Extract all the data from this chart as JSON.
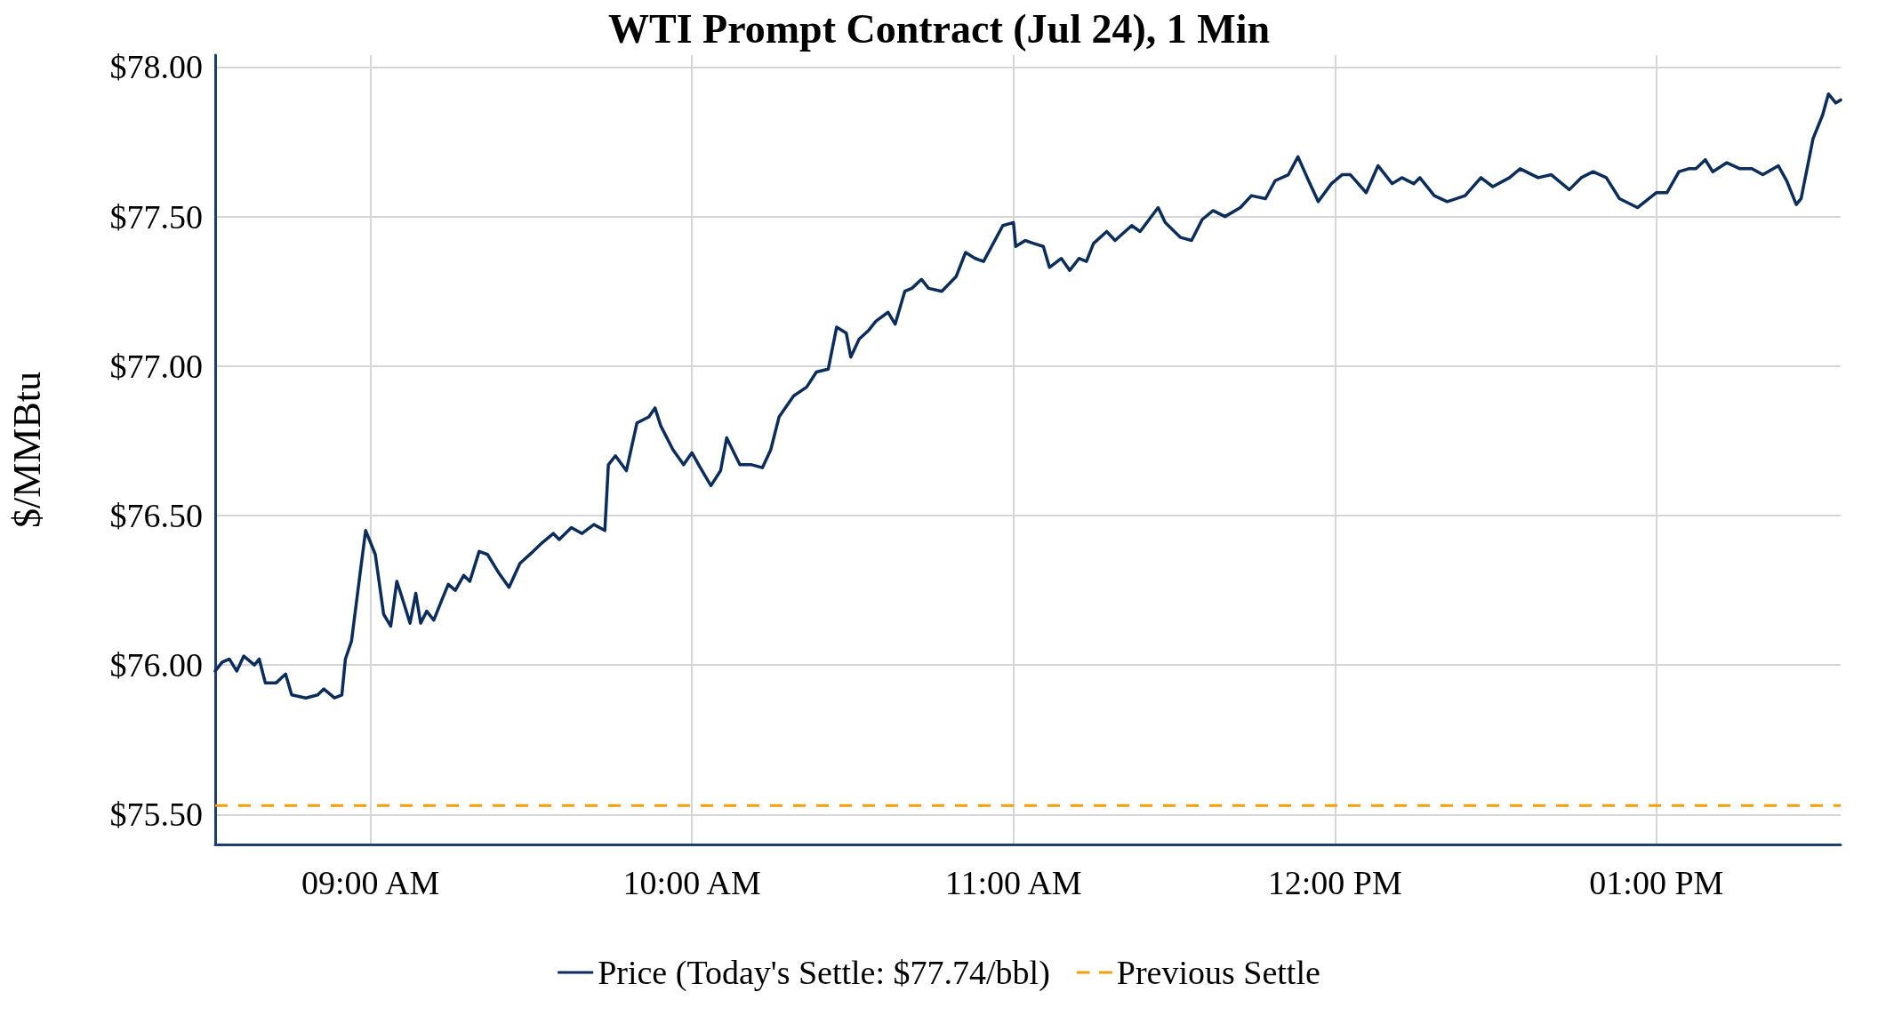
{
  "chart_data": {
    "type": "line",
    "title": "WTI Prompt Contract (Jul 24), 1 Min",
    "ylabel": "$/MMBtu",
    "x": [
      8.517,
      8.539,
      8.561,
      8.584,
      8.606,
      8.639,
      8.654,
      8.673,
      8.706,
      8.736,
      8.755,
      8.799,
      8.836,
      8.855,
      8.888,
      8.911,
      8.922,
      8.941,
      8.967,
      8.985,
      9.0,
      9.015,
      9.041,
      9.063,
      9.082,
      9.097,
      9.123,
      9.141,
      9.156,
      9.175,
      9.197,
      9.219,
      9.242,
      9.264,
      9.29,
      9.309,
      9.338,
      9.364,
      9.398,
      9.431,
      9.465,
      9.506,
      9.535,
      9.569,
      9.587,
      9.625,
      9.658,
      9.695,
      9.729,
      9.74,
      9.762,
      9.796,
      9.829,
      9.866,
      9.885,
      9.903,
      9.941,
      9.974,
      10.0,
      10.026,
      10.059,
      10.089,
      10.108,
      10.149,
      10.186,
      10.219,
      10.245,
      10.271,
      10.316,
      10.357,
      10.387,
      10.424,
      10.45,
      10.48,
      10.494,
      10.52,
      10.55,
      10.572,
      10.61,
      10.632,
      10.662,
      10.684,
      10.714,
      10.736,
      10.777,
      10.822,
      10.851,
      10.881,
      10.907,
      10.967,
      11.0,
      11.007,
      11.037,
      11.063,
      11.093,
      11.112,
      11.149,
      11.175,
      11.204,
      11.227,
      11.249,
      11.29,
      11.316,
      11.368,
      11.394,
      11.45,
      11.472,
      11.52,
      11.554,
      11.587,
      11.621,
      11.658,
      11.706,
      11.74,
      11.784,
      11.814,
      11.855,
      11.885,
      11.918,
      11.948,
      11.989,
      12.022,
      12.048,
      12.097,
      12.134,
      12.178,
      12.208,
      12.245,
      12.264,
      12.309,
      12.349,
      12.405,
      12.454,
      12.491,
      12.543,
      12.576,
      12.632,
      12.673,
      12.729,
      12.766,
      12.803,
      12.844,
      12.885,
      12.941,
      13.0,
      13.033,
      13.07,
      13.1,
      13.123,
      13.152,
      13.175,
      13.219,
      13.26,
      13.297,
      13.331,
      13.379,
      13.405,
      13.435,
      13.45,
      13.487,
      13.517,
      13.535,
      13.558,
      13.573
    ],
    "series": [
      {
        "name": "Price (Today's Settle: $77.74/bbl)",
        "color": "#0b2d5c",
        "line_style": "solid",
        "values": [
          75.98,
          76.01,
          76.02,
          75.98,
          76.03,
          76.0,
          76.02,
          75.94,
          75.94,
          75.97,
          75.9,
          75.89,
          75.9,
          75.92,
          75.89,
          75.9,
          76.02,
          76.08,
          76.3,
          76.45,
          76.41,
          76.37,
          76.17,
          76.13,
          76.28,
          76.23,
          76.14,
          76.24,
          76.14,
          76.18,
          76.15,
          76.21,
          76.27,
          76.25,
          76.3,
          76.28,
          76.38,
          76.37,
          76.31,
          76.26,
          76.34,
          76.38,
          76.41,
          76.44,
          76.42,
          76.46,
          76.44,
          76.47,
          76.45,
          76.67,
          76.7,
          76.65,
          76.81,
          76.83,
          76.86,
          76.8,
          76.72,
          76.67,
          76.71,
          76.66,
          76.6,
          76.65,
          76.76,
          76.67,
          76.67,
          76.66,
          76.72,
          76.83,
          76.9,
          76.93,
          76.98,
          76.99,
          77.13,
          77.11,
          77.03,
          77.09,
          77.12,
          77.15,
          77.18,
          77.14,
          77.25,
          77.26,
          77.29,
          77.26,
          77.25,
          77.3,
          77.38,
          77.36,
          77.35,
          77.47,
          77.48,
          77.4,
          77.42,
          77.41,
          77.4,
          77.33,
          77.36,
          77.32,
          77.36,
          77.35,
          77.41,
          77.45,
          77.42,
          77.47,
          77.45,
          77.53,
          77.48,
          77.43,
          77.42,
          77.49,
          77.52,
          77.5,
          77.53,
          77.57,
          77.56,
          77.62,
          77.64,
          77.7,
          77.62,
          77.55,
          77.61,
          77.64,
          77.64,
          77.58,
          77.67,
          77.61,
          77.63,
          77.61,
          77.63,
          77.57,
          77.55,
          77.57,
          77.63,
          77.6,
          77.63,
          77.66,
          77.63,
          77.64,
          77.59,
          77.63,
          77.65,
          77.63,
          77.56,
          77.53,
          77.58,
          77.58,
          77.65,
          77.66,
          77.66,
          77.69,
          77.65,
          77.68,
          77.66,
          77.66,
          77.64,
          77.67,
          77.62,
          77.54,
          77.56,
          77.76,
          77.84,
          77.91,
          77.88,
          77.89
        ]
      }
    ],
    "ref_lines": [
      {
        "axis": "y",
        "value": 75.53,
        "label": "Previous Settle",
        "color": "#f59e0b",
        "line_style": "dashed"
      }
    ],
    "xlim": [
      8.517,
      13.573
    ],
    "xticks": [
      {
        "value": 9,
        "label": "09:00 AM"
      },
      {
        "value": 10,
        "label": "10:00 AM"
      },
      {
        "value": 11,
        "label": "11:00 AM"
      },
      {
        "value": 12,
        "label": "12:00 PM"
      },
      {
        "value": 13,
        "label": "01:00 PM"
      }
    ],
    "ylim": [
      75.4,
      78.04
    ],
    "yticks": [
      {
        "value": 75.5,
        "label": "$75.50"
      },
      {
        "value": 76,
        "label": "$76.00"
      },
      {
        "value": 76.5,
        "label": "$76.50"
      },
      {
        "value": 77,
        "label": "$77.00"
      },
      {
        "value": 77.5,
        "label": "$77.50"
      },
      {
        "value": 78,
        "label": "$78.00"
      }
    ],
    "grid": true,
    "legend": "bottom",
    "marker": "none"
  }
}
